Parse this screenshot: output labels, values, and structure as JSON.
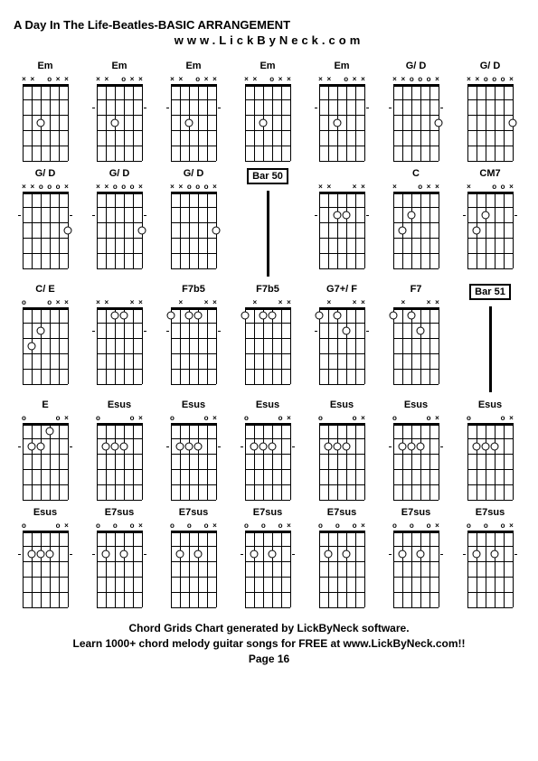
{
  "title": "A Day In The Life-Beatles-BASIC ARRANGEMENT",
  "subtitle": "www.LickByNeck.com",
  "footer_line1": "Chord Grids Chart generated by LickByNeck software.",
  "footer_line2": "Learn 1000+ chord melody guitar songs for FREE at www.LickByNeck.com!!",
  "footer_line3": "Page 16",
  "diagram_style": {
    "strings": 6,
    "frets": 5,
    "fret_height": 17,
    "string_spacing": 10,
    "dot_color": "#ffffff",
    "dot_border": "#000000",
    "line_color": "#000000"
  },
  "chords": [
    {
      "name": "Em",
      "markers": [
        "x",
        "x",
        "",
        "o",
        "x",
        "x"
      ],
      "dots": [
        [
          2,
          3
        ]
      ],
      "ticks": []
    },
    {
      "name": "Em",
      "markers": [
        "x",
        "x",
        "",
        "o",
        "x",
        "x"
      ],
      "dots": [
        [
          2,
          3
        ]
      ],
      "ticks": [
        2
      ]
    },
    {
      "name": "Em",
      "markers": [
        "x",
        "x",
        "",
        "o",
        "x",
        "x"
      ],
      "dots": [
        [
          2,
          3
        ]
      ],
      "ticks": [
        2
      ]
    },
    {
      "name": "Em",
      "markers": [
        "x",
        "x",
        "",
        "o",
        "x",
        "x"
      ],
      "dots": [
        [
          2,
          3
        ]
      ],
      "ticks": []
    },
    {
      "name": "Em",
      "markers": [
        "x",
        "x",
        "",
        "o",
        "x",
        "x"
      ],
      "dots": [
        [
          2,
          3
        ]
      ],
      "ticks": [
        2
      ]
    },
    {
      "name": "G/ D",
      "markers": [
        "x",
        "x",
        "o",
        "o",
        "o",
        "x"
      ],
      "dots": [
        [
          5,
          3
        ]
      ],
      "ticks": [
        2
      ]
    },
    {
      "name": "G/ D",
      "markers": [
        "x",
        "x",
        "o",
        "o",
        "o",
        "x"
      ],
      "dots": [
        [
          5,
          3
        ]
      ],
      "ticks": []
    },
    {
      "name": "G/ D",
      "markers": [
        "x",
        "x",
        "o",
        "o",
        "o",
        "x"
      ],
      "dots": [
        [
          5,
          3
        ]
      ],
      "ticks": [
        2
      ]
    },
    {
      "name": "G/ D",
      "markers": [
        "x",
        "x",
        "o",
        "o",
        "o",
        "x"
      ],
      "dots": [
        [
          5,
          3
        ]
      ],
      "ticks": [
        2
      ]
    },
    {
      "name": "G/ D",
      "markers": [
        "x",
        "x",
        "o",
        "o",
        "o",
        "x"
      ],
      "dots": [
        [
          5,
          3
        ]
      ],
      "ticks": []
    },
    {
      "type": "bar",
      "label": "Bar 50"
    },
    {
      "name": "",
      "markers": [
        "x",
        "x",
        "",
        "",
        "x",
        "x"
      ],
      "dots": [
        [
          2,
          2
        ],
        [
          3,
          2
        ]
      ],
      "ticks": [
        2
      ]
    },
    {
      "name": "C",
      "markers": [
        "x",
        "",
        "",
        "o",
        "x",
        "x"
      ],
      "dots": [
        [
          1,
          3
        ],
        [
          2,
          2
        ]
      ],
      "ticks": []
    },
    {
      "name": "CM7",
      "markers": [
        "x",
        "",
        "",
        "o",
        "o",
        "x"
      ],
      "dots": [
        [
          1,
          3
        ],
        [
          2,
          2
        ]
      ],
      "ticks": [
        2
      ]
    },
    {
      "name": "C/ E",
      "markers": [
        "o",
        "",
        "",
        "o",
        "x",
        "x"
      ],
      "dots": [
        [
          1,
          3
        ],
        [
          2,
          2
        ]
      ],
      "ticks": []
    },
    {
      "name": "",
      "markers": [
        "x",
        "x",
        "",
        "",
        "x",
        "x"
      ],
      "dots": [
        [
          2,
          1
        ],
        [
          3,
          1
        ]
      ],
      "ticks": [
        2
      ]
    },
    {
      "name": "F7b5",
      "markers": [
        "",
        "x",
        "",
        "",
        "x",
        "x"
      ],
      "dots": [
        [
          0,
          1
        ],
        [
          2,
          1
        ],
        [
          3,
          1
        ]
      ],
      "ticks": [
        2
      ]
    },
    {
      "name": "F7b5",
      "markers": [
        "",
        "x",
        "",
        "",
        "x",
        "x"
      ],
      "dots": [
        [
          0,
          1
        ],
        [
          2,
          1
        ],
        [
          3,
          1
        ]
      ],
      "ticks": []
    },
    {
      "name": "G7+/ F",
      "markers": [
        "",
        "x",
        "",
        "",
        "x",
        "x"
      ],
      "dots": [
        [
          0,
          1
        ],
        [
          2,
          1
        ],
        [
          3,
          2
        ]
      ],
      "ticks": [
        2
      ]
    },
    {
      "name": "F7",
      "markers": [
        "",
        "x",
        "",
        "",
        "x",
        "x"
      ],
      "dots": [
        [
          0,
          1
        ],
        [
          2,
          1
        ],
        [
          3,
          2
        ]
      ],
      "ticks": []
    },
    {
      "type": "bar",
      "label": "Bar 51"
    },
    {
      "name": "E",
      "markers": [
        "o",
        "",
        "",
        "",
        "o",
        "x"
      ],
      "dots": [
        [
          1,
          2
        ],
        [
          2,
          2
        ],
        [
          3,
          1
        ]
      ],
      "ticks": [
        2
      ]
    },
    {
      "name": "Esus",
      "markers": [
        "o",
        "",
        "",
        "",
        "o",
        "x"
      ],
      "dots": [
        [
          1,
          2
        ],
        [
          2,
          2
        ],
        [
          3,
          2
        ]
      ],
      "ticks": []
    },
    {
      "name": "Esus",
      "markers": [
        "o",
        "",
        "",
        "",
        "o",
        "x"
      ],
      "dots": [
        [
          1,
          2
        ],
        [
          2,
          2
        ],
        [
          3,
          2
        ]
      ],
      "ticks": [
        2
      ]
    },
    {
      "name": "Esus",
      "markers": [
        "o",
        "",
        "",
        "",
        "o",
        "x"
      ],
      "dots": [
        [
          1,
          2
        ],
        [
          2,
          2
        ],
        [
          3,
          2
        ]
      ],
      "ticks": [
        2
      ]
    },
    {
      "name": "Esus",
      "markers": [
        "o",
        "",
        "",
        "",
        "o",
        "x"
      ],
      "dots": [
        [
          1,
          2
        ],
        [
          2,
          2
        ],
        [
          3,
          2
        ]
      ],
      "ticks": []
    },
    {
      "name": "Esus",
      "markers": [
        "o",
        "",
        "",
        "",
        "o",
        "x"
      ],
      "dots": [
        [
          1,
          2
        ],
        [
          2,
          2
        ],
        [
          3,
          2
        ]
      ],
      "ticks": [
        2
      ]
    },
    {
      "name": "Esus",
      "markers": [
        "o",
        "",
        "",
        "",
        "o",
        "x"
      ],
      "dots": [
        [
          1,
          2
        ],
        [
          2,
          2
        ],
        [
          3,
          2
        ]
      ],
      "ticks": []
    },
    {
      "name": "Esus",
      "markers": [
        "o",
        "",
        "",
        "",
        "o",
        "x"
      ],
      "dots": [
        [
          1,
          2
        ],
        [
          2,
          2
        ],
        [
          3,
          2
        ]
      ],
      "ticks": [
        2
      ]
    },
    {
      "name": "E7sus",
      "markers": [
        "o",
        "",
        "o",
        "",
        "o",
        "x"
      ],
      "dots": [
        [
          1,
          2
        ],
        [
          3,
          2
        ]
      ],
      "ticks": [
        2
      ]
    },
    {
      "name": "E7sus",
      "markers": [
        "o",
        "",
        "o",
        "",
        "o",
        "x"
      ],
      "dots": [
        [
          1,
          2
        ],
        [
          3,
          2
        ]
      ],
      "ticks": []
    },
    {
      "name": "E7sus",
      "markers": [
        "o",
        "",
        "o",
        "",
        "o",
        "x"
      ],
      "dots": [
        [
          1,
          2
        ],
        [
          3,
          2
        ]
      ],
      "ticks": [
        2
      ]
    },
    {
      "name": "E7sus",
      "markers": [
        "o",
        "",
        "o",
        "",
        "o",
        "x"
      ],
      "dots": [
        [
          1,
          2
        ],
        [
          3,
          2
        ]
      ],
      "ticks": []
    },
    {
      "name": "E7sus",
      "markers": [
        "o",
        "",
        "o",
        "",
        "o",
        "x"
      ],
      "dots": [
        [
          1,
          2
        ],
        [
          3,
          2
        ]
      ],
      "ticks": [
        2
      ]
    },
    {
      "name": "E7sus",
      "markers": [
        "o",
        "",
        "o",
        "",
        "o",
        "x"
      ],
      "dots": [
        [
          1,
          2
        ],
        [
          3,
          2
        ]
      ],
      "ticks": [
        2
      ]
    }
  ]
}
